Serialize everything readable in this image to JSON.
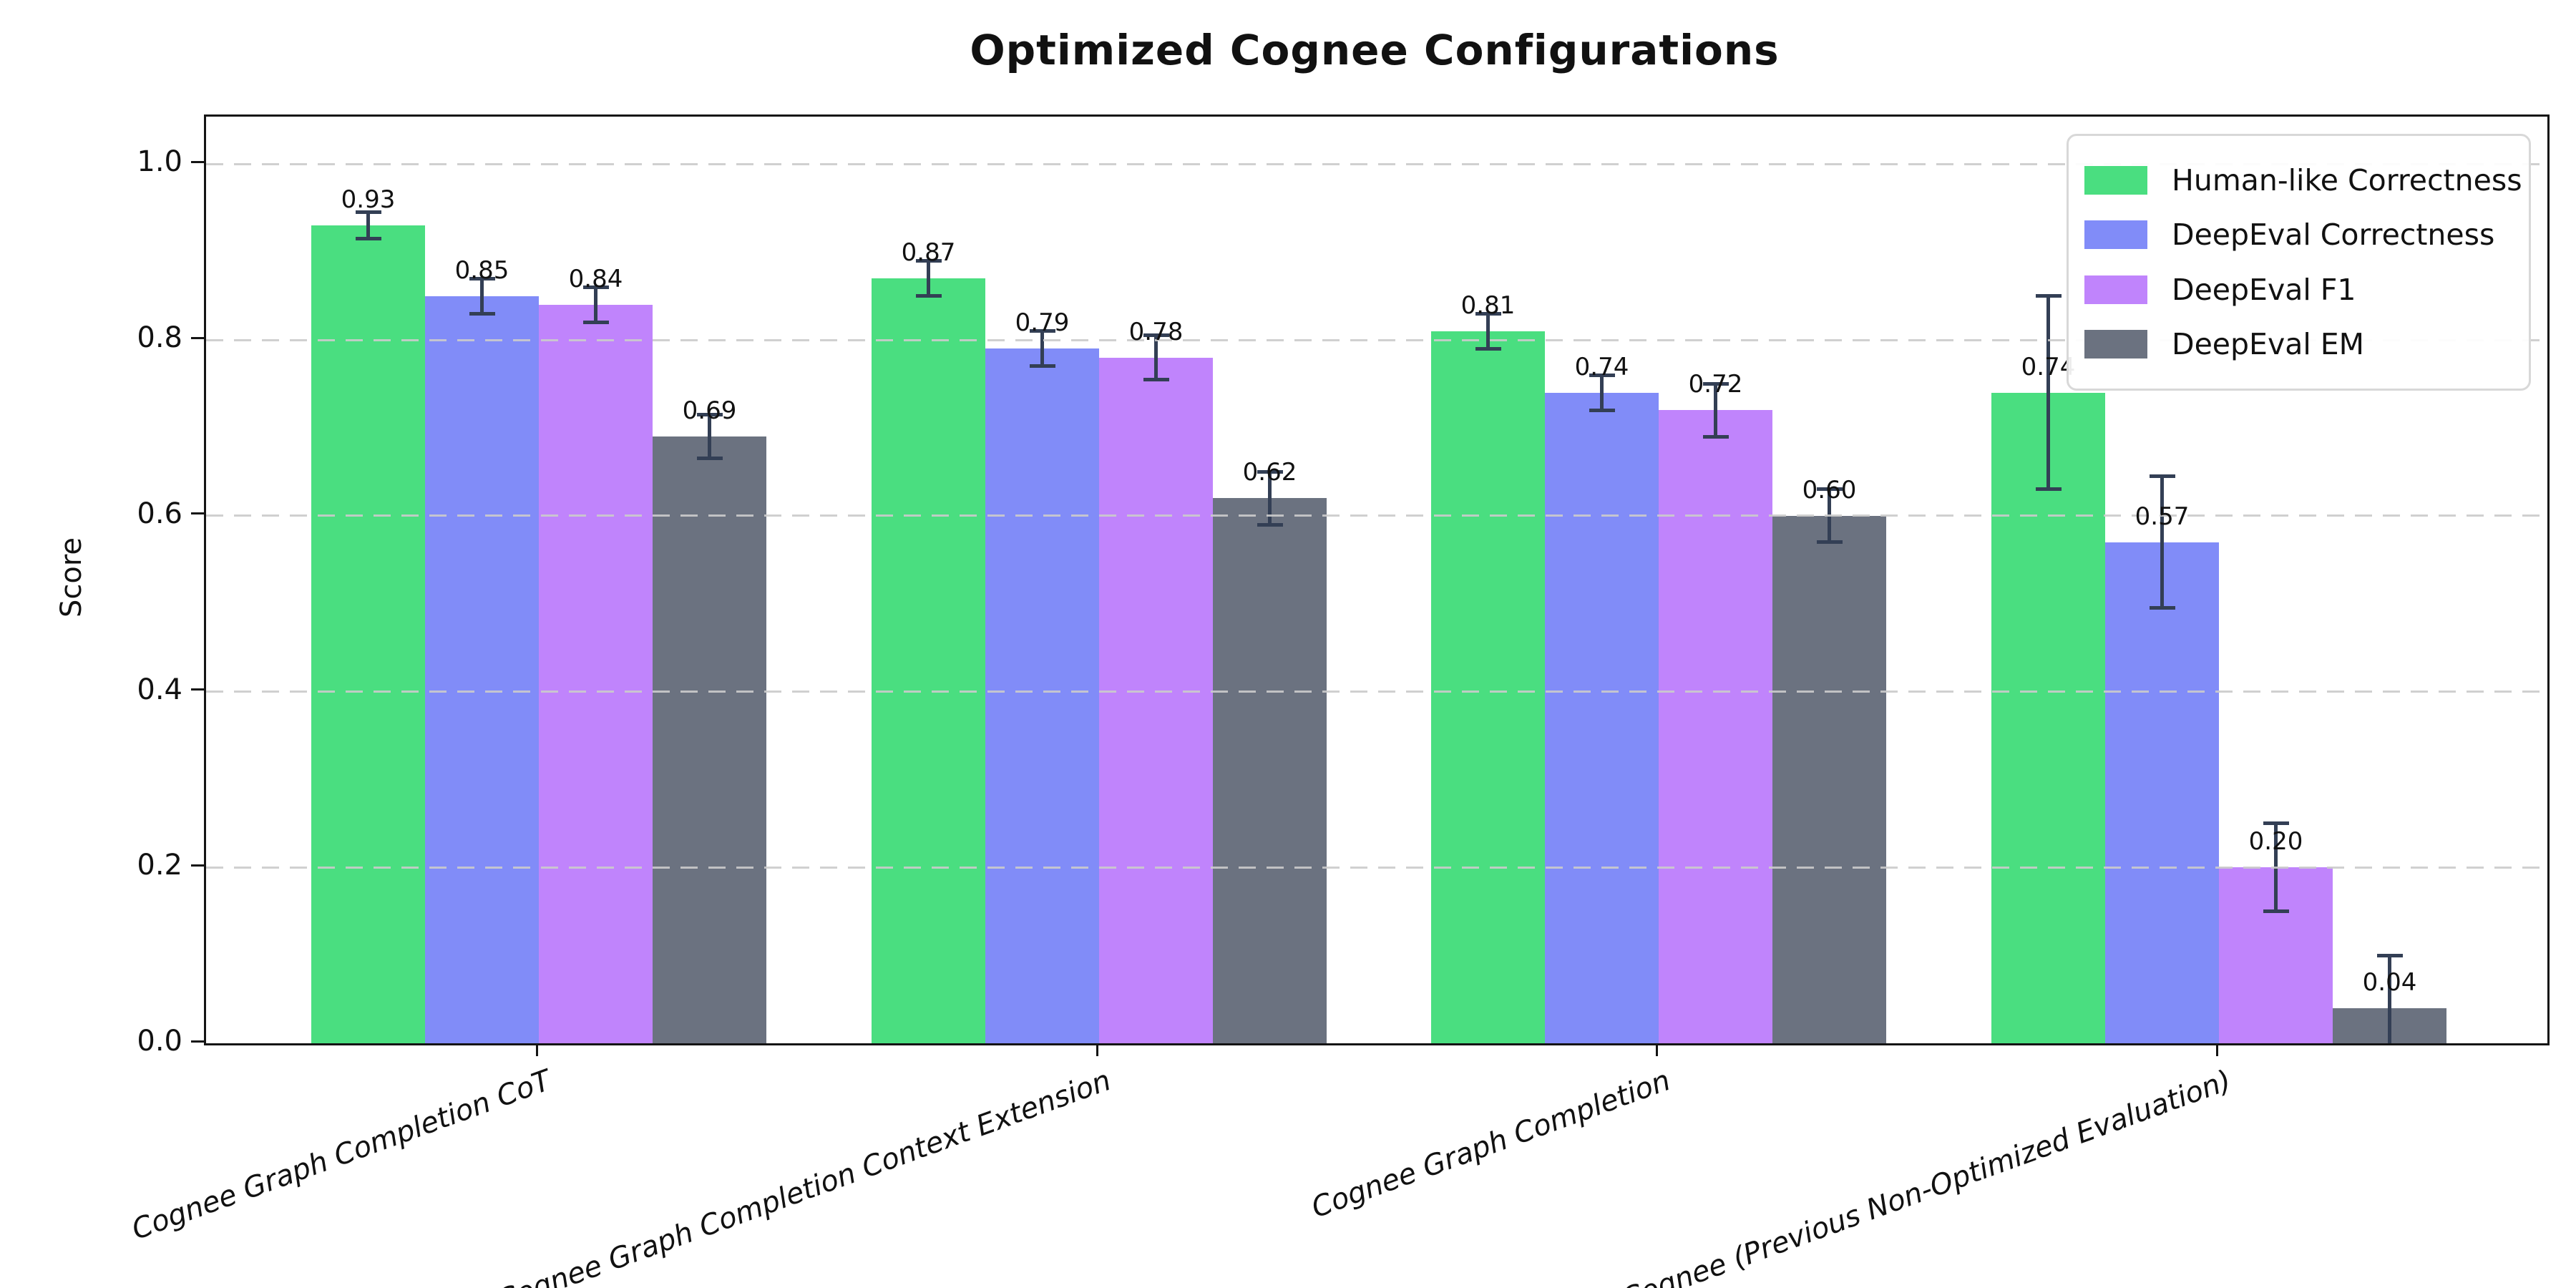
{
  "title": "Optimized Cognee Configurations",
  "ylabel": "Score",
  "chart_data": {
    "type": "bar",
    "title": "Optimized Cognee Configurations",
    "xlabel": "",
    "ylabel": "Score",
    "ylim": [
      0,
      1.05
    ],
    "yticks": [
      0.0,
      0.2,
      0.4,
      0.6,
      0.8,
      1.0
    ],
    "grid": "horizontal-dashed",
    "grid_on_top": true,
    "legend_position": "upper right",
    "bar_labels": true,
    "error_bars": true,
    "error_bar_color": "#333f55",
    "grid_color": "#cbcbcb",
    "categories": [
      "Cognee Graph Completion CoT",
      "Cognee Graph Completion Context Extension",
      "Cognee Graph Completion",
      "Cognee (Previous Non-Optimized Evaluation)"
    ],
    "series": [
      {
        "name": "Human-like Correctness",
        "color": "#4ade80",
        "values": [
          0.93,
          0.87,
          0.81,
          0.74
        ],
        "errors": [
          0.015,
          0.02,
          0.02,
          0.11
        ]
      },
      {
        "name": "DeepEval Correctness",
        "color": "#818cf8",
        "values": [
          0.85,
          0.79,
          0.74,
          0.57
        ],
        "errors": [
          0.02,
          0.02,
          0.02,
          0.075
        ]
      },
      {
        "name": "DeepEval F1",
        "color": "#c084fc",
        "values": [
          0.84,
          0.78,
          0.72,
          0.2
        ],
        "errors": [
          0.02,
          0.025,
          0.03,
          0.05
        ]
      },
      {
        "name": "DeepEval EM",
        "color": "#6b7280",
        "values": [
          0.69,
          0.62,
          0.6,
          0.04
        ],
        "errors": [
          0.025,
          0.03,
          0.03,
          0.06
        ]
      }
    ]
  }
}
